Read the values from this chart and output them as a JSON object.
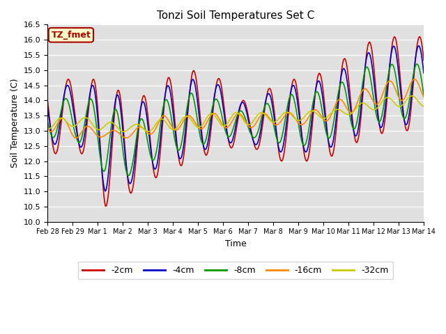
{
  "title": "Tonzi Soil Temperatures Set C",
  "xlabel": "Time",
  "ylabel": "Soil Temperature (C)",
  "ylim": [
    10.0,
    16.5
  ],
  "yticks": [
    10.0,
    10.5,
    11.0,
    11.5,
    12.0,
    12.5,
    13.0,
    13.5,
    14.0,
    14.5,
    15.0,
    15.5,
    16.0,
    16.5
  ],
  "xtick_labels": [
    "Feb 28",
    "Feb 29",
    "Mar 1",
    "Mar 2",
    "Mar 3",
    "Mar 4",
    "Mar 5",
    "Mar 6",
    "Mar 7",
    "Mar 8",
    "Mar 9",
    "Mar 10",
    "Mar 11",
    "Mar 12",
    "Mar 13",
    "Mar 14"
  ],
  "line_colors": {
    "-2cm": "#cc0000",
    "-4cm": "#0000cc",
    "-8cm": "#009900",
    "-16cm": "#ff8800",
    "-32cm": "#cccc00"
  },
  "legend_label": "TZ_fmet",
  "legend_bg": "#ffffcc",
  "legend_border": "#aa0000",
  "plot_bg": "#e0e0e0",
  "fig_bg": "#ffffff",
  "n_days": 15,
  "phase_offsets": {
    "-2cm": -0.583,
    "-4cm": -0.55,
    "-8cm": -0.48,
    "-16cm": -0.38,
    "-32cm": -0.28
  },
  "series": {
    "-2cm": {
      "peaks": [
        14.7,
        14.7,
        14.7,
        13.9,
        14.7,
        15.0,
        14.7,
        13.8,
        14.7,
        14.7,
        15.2,
        15.9,
        16.1,
        16.1
      ],
      "troughs": [
        12.1,
        12.6,
        10.5,
        11.0,
        11.6,
        12.0,
        12.4,
        12.5,
        12.0,
        12.0,
        12.2,
        12.8,
        13.0,
        13.0
      ]
    },
    "-4cm": {
      "peaks": [
        14.5,
        14.5,
        14.5,
        13.75,
        14.45,
        14.7,
        14.5,
        13.75,
        14.5,
        14.5,
        14.9,
        15.55,
        15.8,
        15.8
      ],
      "troughs": [
        12.5,
        12.7,
        11.0,
        11.3,
        11.9,
        12.2,
        12.6,
        12.6,
        12.3,
        12.3,
        12.5,
        13.0,
        13.2,
        13.2
      ]
    },
    "-8cm": {
      "peaks": [
        14.0,
        14.1,
        14.0,
        13.2,
        14.0,
        14.25,
        14.0,
        13.5,
        14.2,
        14.2,
        14.5,
        15.1,
        15.2,
        15.2
      ],
      "troughs": [
        12.8,
        12.7,
        11.6,
        11.5,
        12.3,
        12.4,
        12.8,
        12.8,
        12.6,
        12.5,
        12.85,
        13.2,
        13.4,
        13.4
      ]
    },
    "-16cm": {
      "peaks": [
        13.6,
        13.25,
        13.0,
        13.05,
        13.5,
        13.5,
        13.6,
        13.55,
        13.6,
        13.6,
        14.0,
        14.4,
        14.7,
        14.7
      ],
      "troughs": [
        13.0,
        12.75,
        12.8,
        12.75,
        13.0,
        13.05,
        13.1,
        13.1,
        13.2,
        13.2,
        13.4,
        13.8,
        14.0,
        14.0
      ]
    },
    "-32cm": {
      "peaks": [
        13.35,
        13.5,
        13.3,
        13.2,
        13.4,
        13.5,
        13.6,
        13.6,
        13.6,
        13.65,
        13.7,
        13.95,
        14.15,
        14.15
      ],
      "troughs": [
        13.05,
        13.15,
        13.0,
        12.95,
        13.0,
        13.1,
        13.15,
        13.2,
        13.3,
        13.35,
        13.45,
        13.65,
        13.8,
        13.8
      ]
    }
  }
}
